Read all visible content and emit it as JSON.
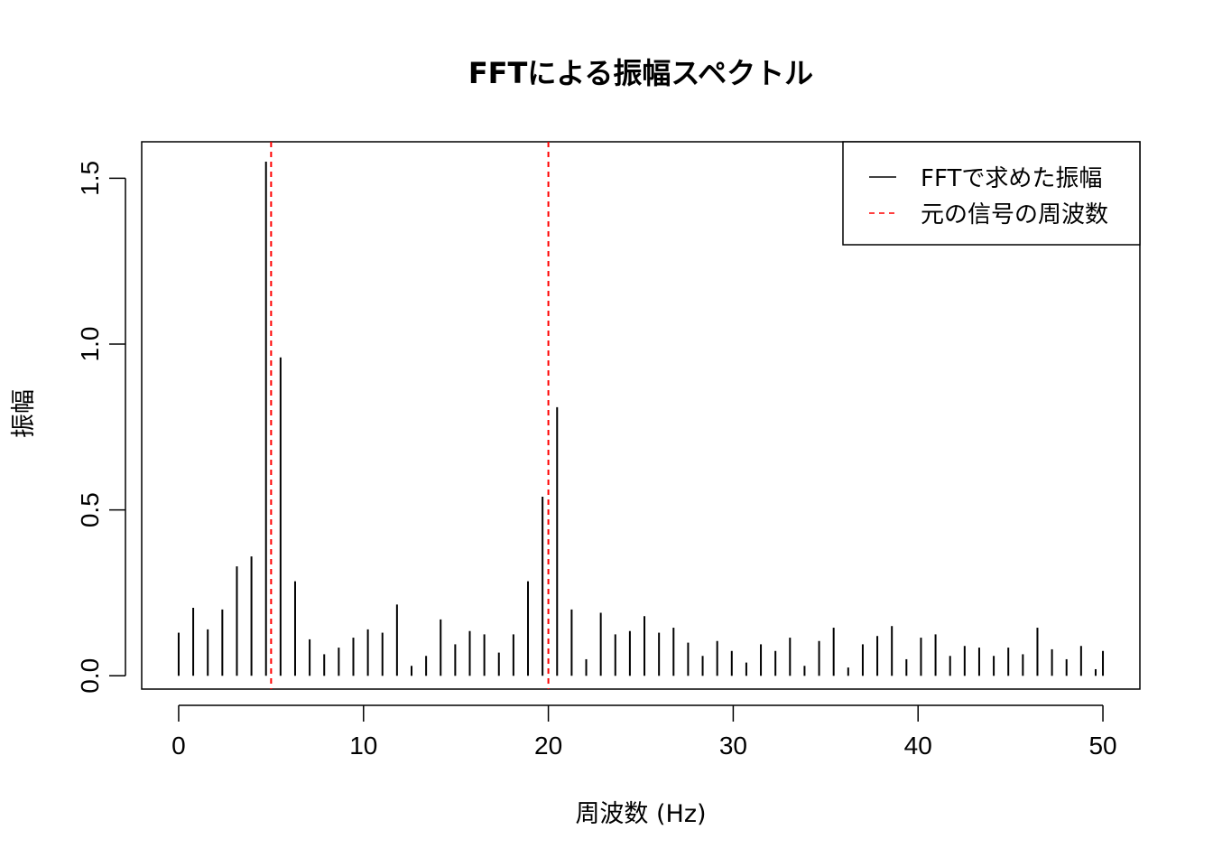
{
  "chart_data": {
    "type": "bar",
    "title": "FFTによる振幅スペクトル",
    "xlabel": "周波数 (Hz)",
    "ylabel": "振幅",
    "xlim": [
      -2,
      52
    ],
    "ylim": [
      -0.04,
      1.61
    ],
    "xticks": [
      0,
      10,
      20,
      30,
      40,
      50
    ],
    "yticks": [
      0.0,
      0.5,
      1.0,
      1.5
    ],
    "ytick_labels": [
      "0.0",
      "0.5",
      "1.0",
      "1.5"
    ],
    "legend_position": "top-right",
    "series": [
      {
        "name": "FFTで求めた振幅",
        "style": "spikes",
        "color": "#000000",
        "x": [
          0.0,
          0.7874,
          1.5748,
          2.3622,
          3.1496,
          3.937,
          4.7244,
          5.5118,
          6.2992,
          7.0866,
          7.874,
          8.6614,
          9.4488,
          10.2362,
          11.0236,
          11.811,
          12.5984,
          13.3858,
          14.1732,
          14.9606,
          15.748,
          16.5354,
          17.3228,
          18.1102,
          18.8976,
          19.685,
          20.4724,
          21.2598,
          22.0472,
          22.8346,
          23.622,
          24.4094,
          25.1969,
          25.9843,
          26.7717,
          27.5591,
          28.3465,
          29.1339,
          29.9213,
          30.7087,
          31.4961,
          32.2835,
          33.0709,
          33.8583,
          34.6457,
          35.4331,
          36.2205,
          37.0079,
          37.7953,
          38.5827,
          39.3701,
          40.1575,
          40.9449,
          41.7323,
          42.5197,
          43.3071,
          44.0945,
          44.8819,
          45.6693,
          46.4567,
          47.2441,
          48.0315,
          48.8189,
          49.6063,
          50.0
        ],
        "values": [
          0.13,
          0.205,
          0.14,
          0.2,
          0.33,
          0.36,
          1.55,
          0.96,
          0.285,
          0.11,
          0.065,
          0.085,
          0.115,
          0.14,
          0.13,
          0.215,
          0.03,
          0.06,
          0.17,
          0.095,
          0.135,
          0.125,
          0.07,
          0.125,
          0.285,
          0.54,
          0.81,
          0.2,
          0.05,
          0.19,
          0.125,
          0.135,
          0.18,
          0.13,
          0.145,
          0.1,
          0.06,
          0.105,
          0.075,
          0.04,
          0.095,
          0.075,
          0.115,
          0.03,
          0.105,
          0.145,
          0.025,
          0.095,
          0.12,
          0.15,
          0.05,
          0.115,
          0.125,
          0.06,
          0.09,
          0.085,
          0.06,
          0.085,
          0.065,
          0.145,
          0.08,
          0.05,
          0.09,
          0.02,
          0.075
        ]
      },
      {
        "name": "元の信号の周波数",
        "style": "vline-dashed",
        "color": "#ff0000",
        "x": [
          5,
          20
        ]
      }
    ]
  }
}
